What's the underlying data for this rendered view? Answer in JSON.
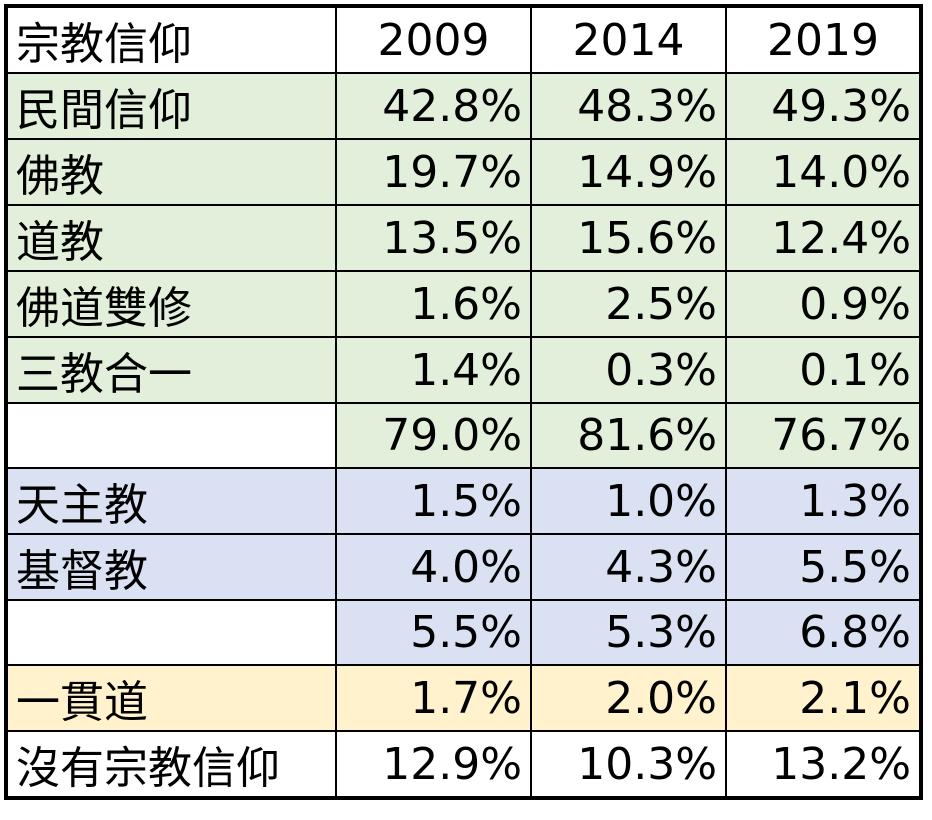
{
  "table": {
    "header": [
      "宗教信仰",
      "2009",
      "2014",
      "2019"
    ],
    "rows": [
      {
        "label": "民間信仰",
        "values": [
          "42.8%",
          "48.3%",
          "49.3%"
        ],
        "color": "#e2efda"
      },
      {
        "label": "佛教",
        "values": [
          "19.7%",
          "14.9%",
          "14.0%"
        ],
        "color": "#e2efda"
      },
      {
        "label": "道教",
        "values": [
          "13.5%",
          "15.6%",
          "12.4%"
        ],
        "color": "#e2efda"
      },
      {
        "label": "佛道雙修",
        "values": [
          "1.6%",
          "2.5%",
          "0.9%"
        ],
        "color": "#e2efda"
      },
      {
        "label": "三教合一",
        "values": [
          "1.4%",
          "0.3%",
          "0.1%"
        ],
        "color": "#e2efda"
      },
      {
        "label": null,
        "values": [
          "79.0%",
          "81.6%",
          "76.7%"
        ],
        "color": "#e2efda"
      },
      {
        "label": "天主教",
        "values": [
          "1.5%",
          "1.0%",
          "1.3%"
        ],
        "color": "#d9e1f2"
      },
      {
        "label": "基督教",
        "values": [
          "4.0%",
          "4.3%",
          "5.5%"
        ],
        "color": "#d9e1f2"
      },
      {
        "label": null,
        "values": [
          "5.5%",
          "5.3%",
          "6.8%"
        ],
        "color": "#d9e1f2"
      },
      {
        "label": "一貫道",
        "values": [
          "1.7%",
          "2.0%",
          "2.1%"
        ],
        "color": "#fff2cc"
      },
      {
        "label": "沒有宗教信仰",
        "values": [
          "12.9%",
          "10.3%",
          "13.2%"
        ],
        "color": "#ffffff"
      }
    ]
  }
}
